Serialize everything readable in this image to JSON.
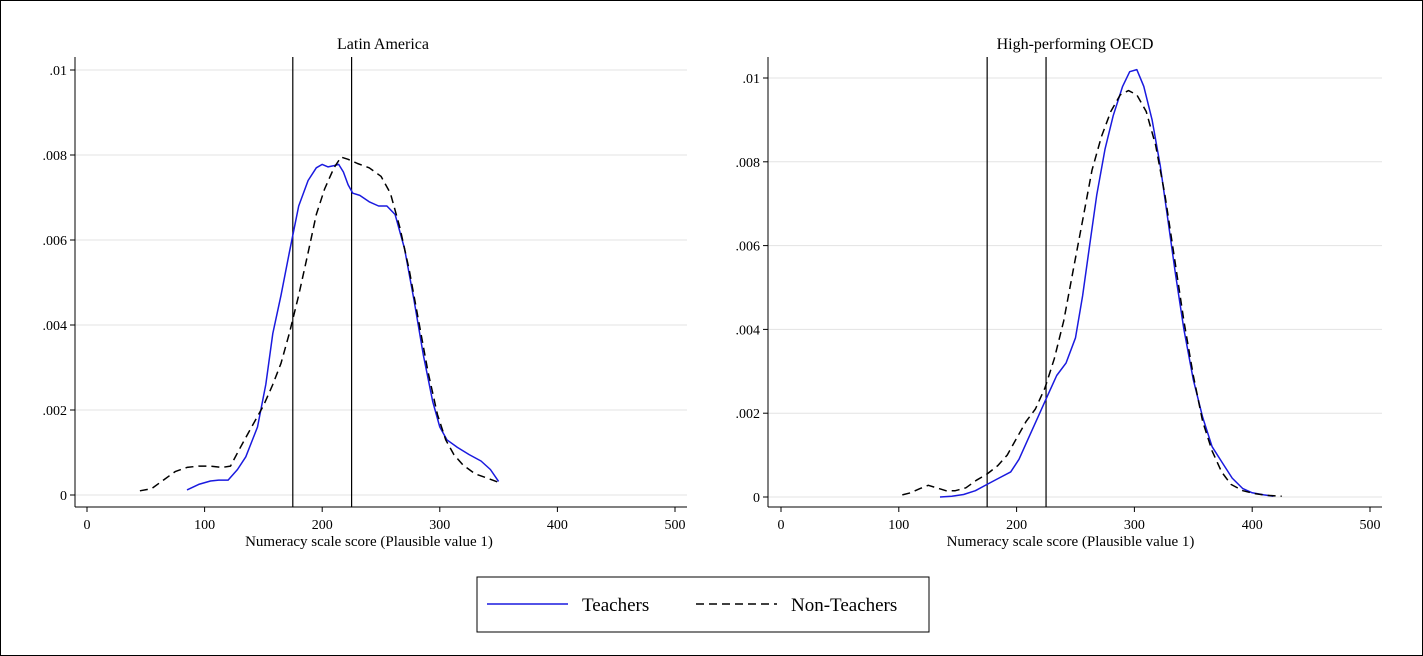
{
  "chart_data": [
    {
      "type": "line",
      "title": "Latin America",
      "xlabel": "Numeracy scale score (Plausible value 1)",
      "ylabel": "",
      "xlim": [
        0,
        500
      ],
      "ylim": [
        0,
        0.01
      ],
      "x_ticks": [
        0,
        100,
        200,
        300,
        400,
        500
      ],
      "x_tick_labels": [
        "0",
        "100",
        "200",
        "300",
        "400",
        "500"
      ],
      "y_ticks": [
        0,
        0.002,
        0.004,
        0.006,
        0.008,
        0.01
      ],
      "y_tick_labels": [
        "0",
        ".002",
        ".004",
        ".006",
        ".008",
        ".01"
      ],
      "grid": true,
      "reference_lines_x": [
        175,
        225
      ],
      "series": [
        {
          "name": "Teachers",
          "color": "#1a1adf",
          "dash": "solid",
          "points": [
            [
              85,
              0.00012
            ],
            [
              95,
              0.00025
            ],
            [
              105,
              0.00033
            ],
            [
              112,
              0.00035
            ],
            [
              120,
              0.00035
            ],
            [
              128,
              0.0006
            ],
            [
              135,
              0.0009
            ],
            [
              145,
              0.0016
            ],
            [
              152,
              0.0026
            ],
            [
              158,
              0.0038
            ],
            [
              165,
              0.0047
            ],
            [
              172,
              0.0057
            ],
            [
              180,
              0.0068
            ],
            [
              188,
              0.0074
            ],
            [
              195,
              0.0077
            ],
            [
              200,
              0.00778
            ],
            [
              205,
              0.00772
            ],
            [
              210,
              0.00775
            ],
            [
              214,
              0.00778
            ],
            [
              218,
              0.0076
            ],
            [
              222,
              0.0073
            ],
            [
              226,
              0.0071
            ],
            [
              232,
              0.00705
            ],
            [
              240,
              0.0069
            ],
            [
              248,
              0.0068
            ],
            [
              255,
              0.0068
            ],
            [
              262,
              0.0066
            ],
            [
              270,
              0.0058
            ],
            [
              278,
              0.0046
            ],
            [
              286,
              0.0033
            ],
            [
              294,
              0.0022
            ],
            [
              300,
              0.0016
            ],
            [
              306,
              0.0013
            ],
            [
              315,
              0.00112
            ],
            [
              325,
              0.00095
            ],
            [
              335,
              0.0008
            ],
            [
              343,
              0.0006
            ],
            [
              350,
              0.00032
            ]
          ]
        },
        {
          "name": "Non-Teachers",
          "color": "#000000",
          "dash": "dashed",
          "points": [
            [
              45,
              0.0001
            ],
            [
              55,
              0.00015
            ],
            [
              65,
              0.00035
            ],
            [
              75,
              0.00055
            ],
            [
              85,
              0.00065
            ],
            [
              95,
              0.00068
            ],
            [
              105,
              0.00068
            ],
            [
              115,
              0.00065
            ],
            [
              122,
              0.00068
            ],
            [
              130,
              0.0011
            ],
            [
              140,
              0.0016
            ],
            [
              150,
              0.0021
            ],
            [
              158,
              0.0026
            ],
            [
              165,
              0.0031
            ],
            [
              172,
              0.0038
            ],
            [
              180,
              0.0047
            ],
            [
              188,
              0.0057
            ],
            [
              195,
              0.0066
            ],
            [
              202,
              0.0072
            ],
            [
              210,
              0.0077
            ],
            [
              216,
              0.00795
            ],
            [
              222,
              0.0079
            ],
            [
              230,
              0.0078
            ],
            [
              240,
              0.0077
            ],
            [
              250,
              0.0075
            ],
            [
              258,
              0.0071
            ],
            [
              266,
              0.0063
            ],
            [
              274,
              0.0053
            ],
            [
              282,
              0.0041
            ],
            [
              290,
              0.0029
            ],
            [
              298,
              0.0019
            ],
            [
              305,
              0.0013
            ],
            [
              312,
              0.00095
            ],
            [
              320,
              0.0007
            ],
            [
              330,
              0.0005
            ],
            [
              340,
              0.0004
            ],
            [
              350,
              0.0003
            ]
          ]
        }
      ]
    },
    {
      "type": "line",
      "title": "High-performing OECD",
      "xlabel": "Numeracy scale score (Plausible value 1)",
      "ylabel": "",
      "xlim": [
        0,
        500
      ],
      "ylim": [
        0,
        0.01
      ],
      "x_ticks": [
        0,
        100,
        200,
        300,
        400,
        500
      ],
      "x_tick_labels": [
        "0",
        "100",
        "200",
        "300",
        "400",
        "500"
      ],
      "y_ticks": [
        0,
        0.002,
        0.004,
        0.006,
        0.008,
        0.01
      ],
      "y_tick_labels": [
        "0",
        ".002",
        ".004",
        ".006",
        ".008",
        ".01"
      ],
      "grid": true,
      "reference_lines_x": [
        175,
        225
      ],
      "series": [
        {
          "name": "Teachers",
          "color": "#1a1adf",
          "dash": "solid",
          "points": [
            [
              135,
              0.0
            ],
            [
              145,
              2e-05
            ],
            [
              155,
              6e-05
            ],
            [
              165,
              0.00015
            ],
            [
              175,
              0.0003
            ],
            [
              185,
              0.00045
            ],
            [
              195,
              0.0006
            ],
            [
              202,
              0.0009
            ],
            [
              210,
              0.0014
            ],
            [
              218,
              0.0019
            ],
            [
              226,
              0.0024
            ],
            [
              234,
              0.0029
            ],
            [
              242,
              0.0032
            ],
            [
              250,
              0.0038
            ],
            [
              256,
              0.0048
            ],
            [
              262,
              0.006
            ],
            [
              268,
              0.0072
            ],
            [
              275,
              0.0083
            ],
            [
              282,
              0.0091
            ],
            [
              290,
              0.0098
            ],
            [
              296,
              0.01015
            ],
            [
              302,
              0.0102
            ],
            [
              308,
              0.0098
            ],
            [
              315,
              0.009
            ],
            [
              322,
              0.0079
            ],
            [
              328,
              0.0067
            ],
            [
              335,
              0.0053
            ],
            [
              342,
              0.004
            ],
            [
              350,
              0.0028
            ],
            [
              358,
              0.0019
            ],
            [
              366,
              0.0012
            ],
            [
              375,
              0.0008
            ],
            [
              383,
              0.00045
            ],
            [
              392,
              0.0002
            ],
            [
              400,
              0.0001
            ],
            [
              410,
              5e-05
            ],
            [
              418,
              2e-05
            ]
          ]
        },
        {
          "name": "Non-Teachers",
          "color": "#000000",
          "dash": "dashed",
          "points": [
            [
              103,
              5e-05
            ],
            [
              110,
              0.0001
            ],
            [
              118,
              0.0002
            ],
            [
              125,
              0.00028
            ],
            [
              132,
              0.00022
            ],
            [
              140,
              0.00015
            ],
            [
              148,
              0.00015
            ],
            [
              157,
              0.00022
            ],
            [
              166,
              0.0004
            ],
            [
              175,
              0.00055
            ],
            [
              184,
              0.00075
            ],
            [
              192,
              0.001
            ],
            [
              200,
              0.0014
            ],
            [
              208,
              0.0018
            ],
            [
              216,
              0.0021
            ],
            [
              224,
              0.0026
            ],
            [
              232,
              0.0033
            ],
            [
              240,
              0.0042
            ],
            [
              248,
              0.0054
            ],
            [
              256,
              0.0066
            ],
            [
              264,
              0.0078
            ],
            [
              272,
              0.0086
            ],
            [
              280,
              0.0092
            ],
            [
              288,
              0.0096
            ],
            [
              295,
              0.0097
            ],
            [
              302,
              0.0096
            ],
            [
              310,
              0.0092
            ],
            [
              318,
              0.0084
            ],
            [
              326,
              0.0072
            ],
            [
              334,
              0.0057
            ],
            [
              342,
              0.0042
            ],
            [
              350,
              0.0029
            ],
            [
              358,
              0.0018
            ],
            [
              366,
              0.0011
            ],
            [
              374,
              0.0006
            ],
            [
              382,
              0.0003
            ],
            [
              392,
              0.00015
            ],
            [
              402,
              8e-05
            ],
            [
              412,
              4e-05
            ],
            [
              425,
              2e-05
            ]
          ]
        }
      ]
    }
  ],
  "legend": {
    "placement": "bottom-center",
    "items": [
      {
        "label": "Teachers",
        "color": "#1a1adf",
        "dash": "solid"
      },
      {
        "label": "Non-Teachers",
        "color": "#000000",
        "dash": "dashed"
      }
    ]
  }
}
